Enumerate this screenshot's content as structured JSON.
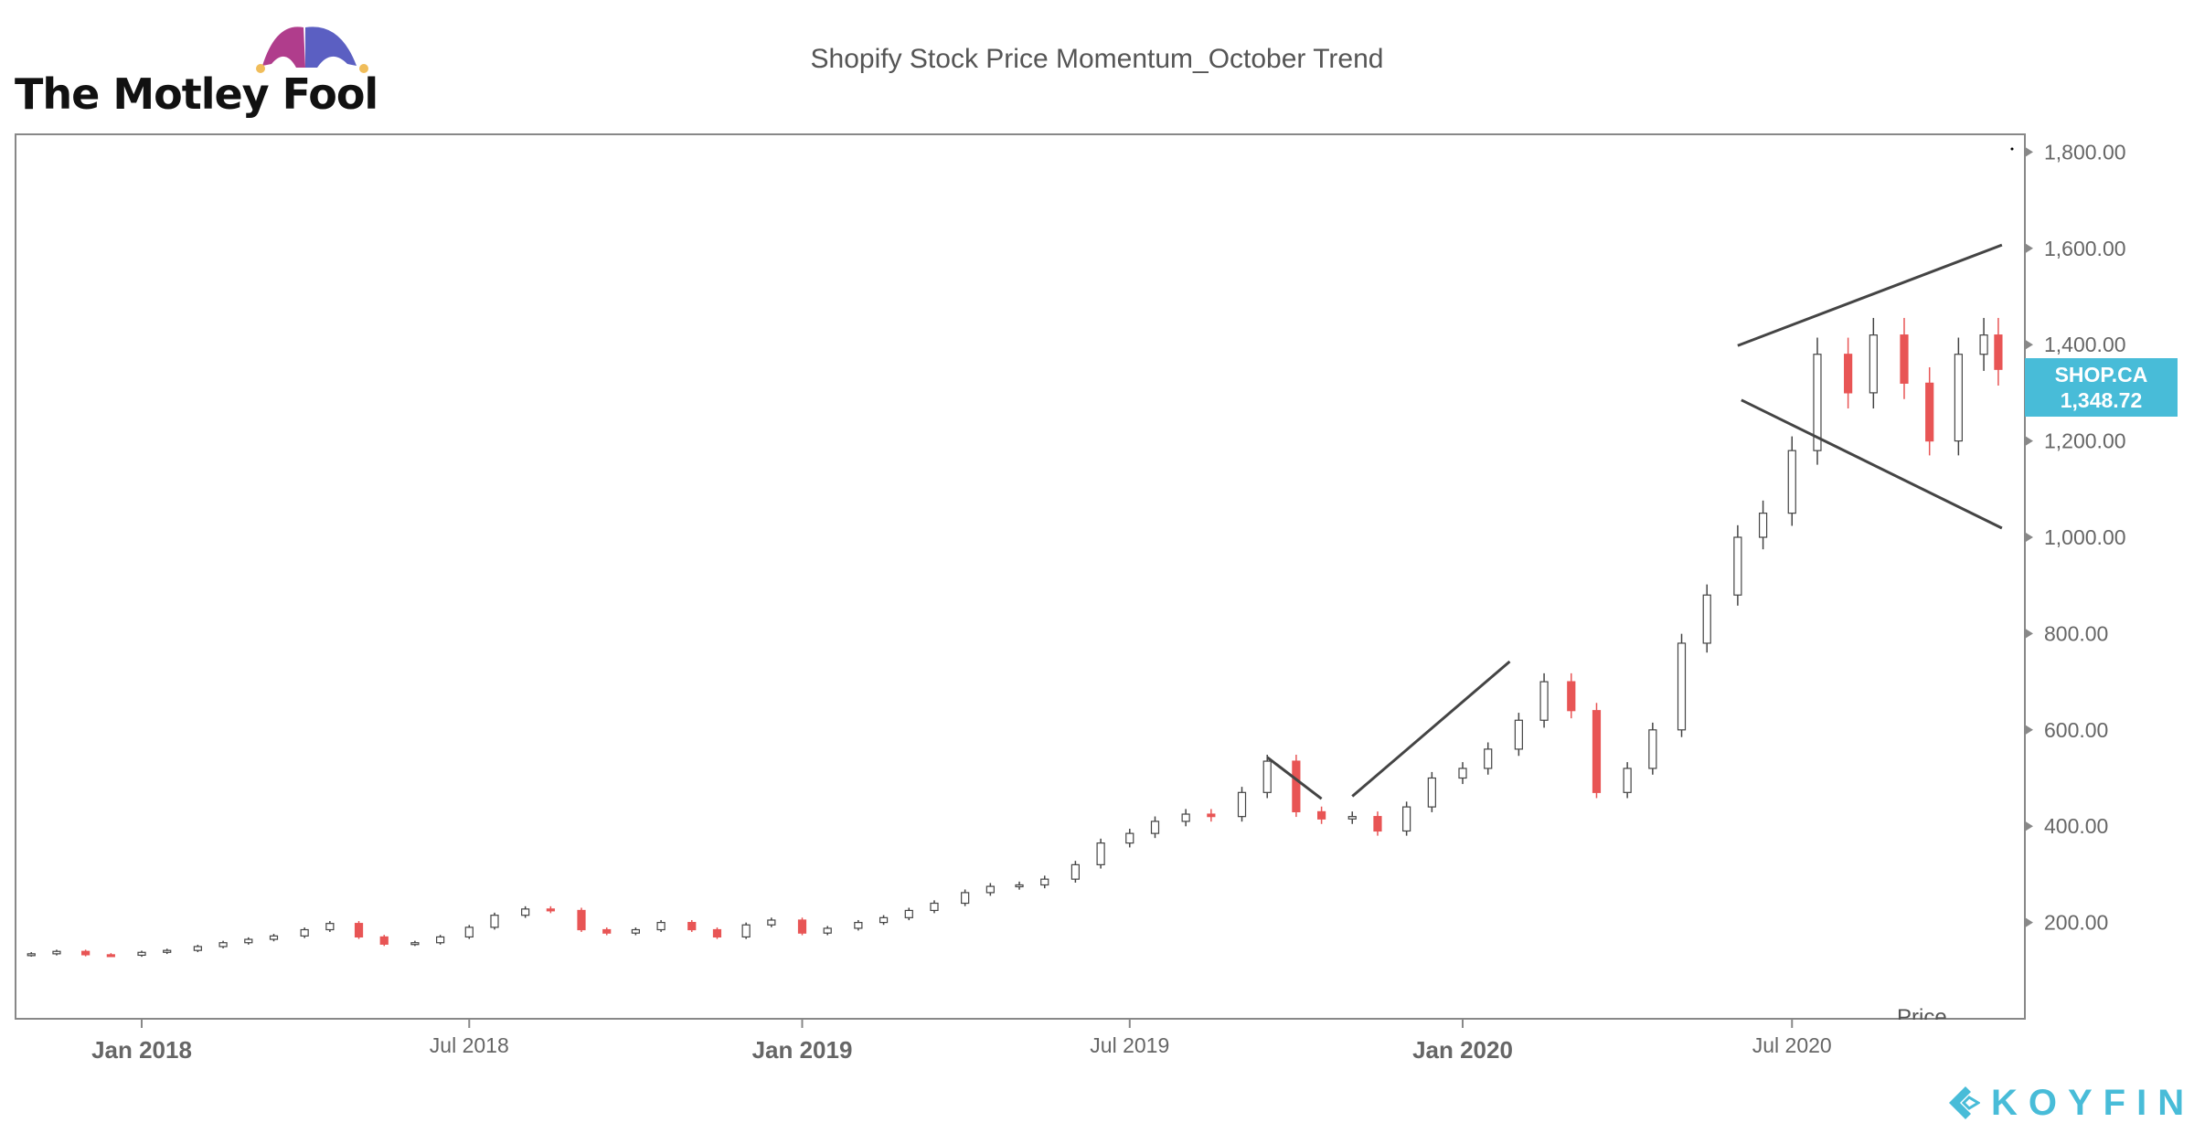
{
  "header": {
    "logo_text": "The Motley Fool",
    "title": "Shopify Stock Price Momentum_October Trend"
  },
  "price_tag": {
    "ticker": "SHOP.CA",
    "last": "1,348.72",
    "color": "#48bcd8"
  },
  "cut_label": "Price",
  "footer": {
    "brand": "KOYFIN"
  },
  "colors": {
    "up": "#ffffff",
    "up_outline": "#444444",
    "down": "#e85555",
    "trendline": "#444444",
    "axis": "#888888"
  },
  "chart_data": {
    "type": "candlestick",
    "title": "Shopify Stock Price Momentum_October Trend",
    "xlabel": "",
    "ylabel": "",
    "ylim": [
      0,
      1850
    ],
    "y_ticks": [
      "200.00",
      "400.00",
      "600.00",
      "800.00",
      "1,000.00",
      "1,200.00",
      "1,400.00",
      "1,600.00",
      "1,800.00"
    ],
    "y_tick_values": [
      200,
      400,
      600,
      800,
      1000,
      1200,
      1400,
      1600,
      1800
    ],
    "x_ticks": [
      {
        "label": "Jan 2018",
        "date": "2018-01-01",
        "bold": true
      },
      {
        "label": "Jul 2018",
        "date": "2018-07-01",
        "bold": false
      },
      {
        "label": "Jan 2019",
        "date": "2019-01-01",
        "bold": true
      },
      {
        "label": "Jul 2019",
        "date": "2019-07-01",
        "bold": false
      },
      {
        "label": "Jan 2020",
        "date": "2020-01-01",
        "bold": true
      },
      {
        "label": "Jul 2020",
        "date": "2020-07-01",
        "bold": false
      }
    ],
    "y_axis_position": "right",
    "grid": false,
    "series": [
      {
        "dates": [
          "2017-11-01",
          "2017-11-15",
          "2017-12-01",
          "2017-12-15",
          "2018-01-01",
          "2018-01-15",
          "2018-02-01",
          "2018-02-15",
          "2018-03-01",
          "2018-03-15",
          "2018-04-01",
          "2018-04-15",
          "2018-05-01",
          "2018-05-15",
          "2018-06-01",
          "2018-06-15",
          "2018-07-01",
          "2018-07-15",
          "2018-08-01",
          "2018-08-15",
          "2018-09-01",
          "2018-09-15",
          "2018-10-01",
          "2018-10-15",
          "2018-11-01",
          "2018-11-15",
          "2018-12-01",
          "2018-12-15",
          "2019-01-01",
          "2019-01-15",
          "2019-02-01",
          "2019-02-15",
          "2019-03-01",
          "2019-03-15",
          "2019-04-01",
          "2019-04-15",
          "2019-05-01",
          "2019-05-15",
          "2019-06-01",
          "2019-06-15",
          "2019-07-01",
          "2019-07-15",
          "2019-08-01",
          "2019-08-15",
          "2019-09-01",
          "2019-09-15",
          "2019-10-01",
          "2019-10-15",
          "2019-11-01",
          "2019-11-15",
          "2019-12-01",
          "2019-12-15",
          "2020-01-01",
          "2020-01-15",
          "2020-02-01",
          "2020-02-15",
          "2020-03-01",
          "2020-03-15",
          "2020-04-01",
          "2020-04-15",
          "2020-05-01",
          "2020-05-15",
          "2020-06-01",
          "2020-06-15",
          "2020-07-01",
          "2020-07-15",
          "2020-08-01",
          "2020-08-15",
          "2020-09-01",
          "2020-09-15",
          "2020-10-01",
          "2020-10-15",
          "2020-10-23"
        ],
        "close": [
          135,
          140,
          133,
          132,
          138,
          142,
          150,
          158,
          165,
          172,
          185,
          198,
          170,
          155,
          158,
          170,
          190,
          215,
          228,
          225,
          185,
          178,
          185,
          200,
          185,
          170,
          195,
          205,
          178,
          188,
          200,
          210,
          225,
          240,
          262,
          275,
          278,
          290,
          320,
          365,
          385,
          410,
          425,
          420,
          470,
          535,
          430,
          415,
          420,
          390,
          440,
          500,
          520,
          560,
          620,
          700,
          640,
          470,
          520,
          600,
          780,
          880,
          1000,
          1050,
          1180,
          1380,
          1300,
          1420,
          1320,
          1200,
          1380,
          1420,
          1348.72
        ]
      }
    ],
    "annotations": [
      {
        "type": "trendline",
        "from": [
          "2019-09-15",
          543
        ],
        "to": [
          "2019-10-15",
          457
        ]
      },
      {
        "type": "trendline",
        "from": [
          "2019-11-01",
          462
        ],
        "to": [
          "2020-01-27",
          742
        ]
      },
      {
        "type": "trendline",
        "from": [
          "2020-06-01",
          1398
        ],
        "to": [
          "2020-10-25",
          1607
        ]
      },
      {
        "type": "trendline",
        "from": [
          "2020-06-03",
          1285
        ],
        "to": [
          "2020-10-25",
          1019
        ]
      }
    ]
  }
}
